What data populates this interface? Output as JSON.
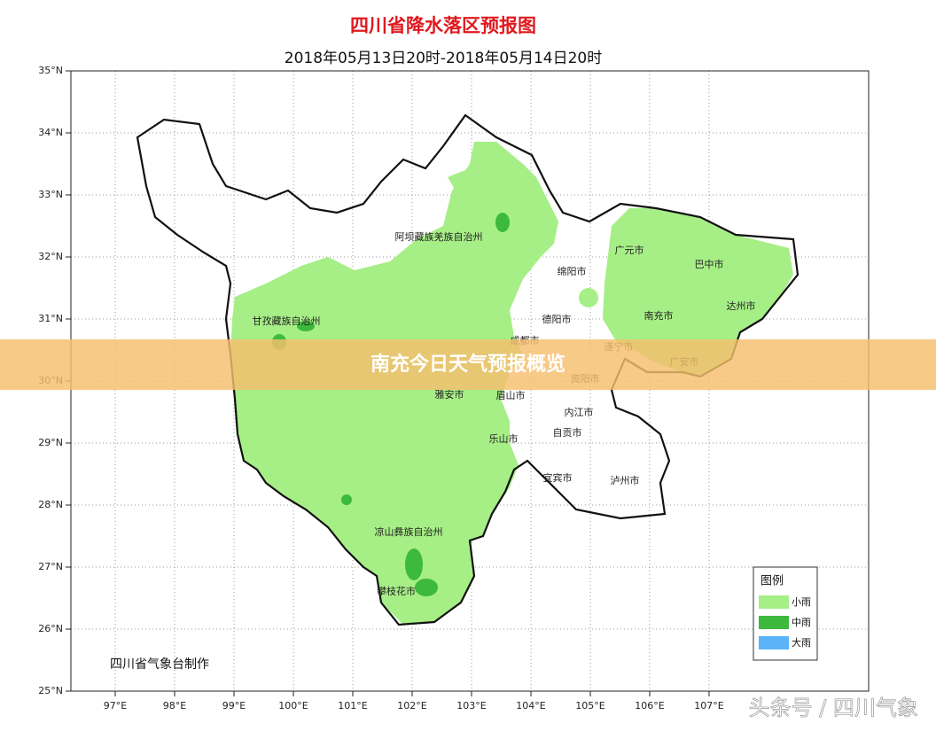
{
  "header": {
    "title": "四川省降水落区预报图",
    "subtitle": "2018年05月13日20时-2018年05月14日20时"
  },
  "map": {
    "lat_ticks": [
      {
        "value": 25,
        "label": "25°N"
      },
      {
        "value": 26,
        "label": "26°N"
      },
      {
        "value": 27,
        "label": "27°N"
      },
      {
        "value": 28,
        "label": "28°N"
      },
      {
        "value": 29,
        "label": "29°N"
      },
      {
        "value": 30,
        "label": "30°N"
      },
      {
        "value": 31,
        "label": "31°N"
      },
      {
        "value": 32,
        "label": "32°N"
      },
      {
        "value": 33,
        "label": "33°N"
      },
      {
        "value": 34,
        "label": "34°N"
      },
      {
        "value": 35,
        "label": "35°N"
      }
    ],
    "lon_ticks": [
      {
        "value": 97,
        "label": "97°E"
      },
      {
        "value": 98,
        "label": "98°E"
      },
      {
        "value": 99,
        "label": "99°E"
      },
      {
        "value": 100,
        "label": "100°E"
      },
      {
        "value": 101,
        "label": "101°E"
      },
      {
        "value": 102,
        "label": "102°E"
      },
      {
        "value": 103,
        "label": "103°E"
      },
      {
        "value": 104,
        "label": "104°E"
      },
      {
        "value": 105,
        "label": "105°E"
      },
      {
        "value": 106,
        "label": "106°E"
      },
      {
        "value": 107,
        "label": "107°E"
      }
    ],
    "places": [
      "阿坝藏族羌族自治州",
      "甘孜藏族自治州",
      "广元市",
      "巴中市",
      "绵阳市",
      "德阳市",
      "南充市",
      "达州市",
      "成都市",
      "遂宁市",
      "广安市",
      "资阳市",
      "雅安市",
      "眉山市",
      "内江市",
      "乐山市",
      "自贡市",
      "宜宾市",
      "泸州市",
      "凉山彝族自治州",
      "攀枝花市"
    ],
    "credit": "四川省气象台制作"
  },
  "legend": {
    "title": "图例",
    "items": [
      {
        "label": "小雨",
        "color": "#a6ee86"
      },
      {
        "label": "中雨",
        "color": "#3dba3d"
      },
      {
        "label": "大雨",
        "color": "#5cb3f7"
      }
    ]
  },
  "banner": "南充今日天气预报概览",
  "watermark": "头条号 / 四川气象"
}
